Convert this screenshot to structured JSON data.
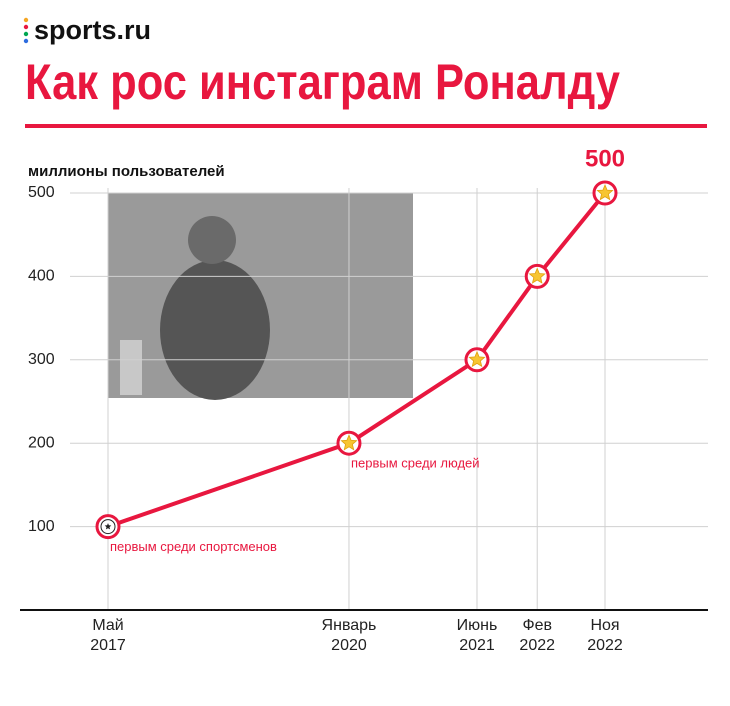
{
  "brand": "sports.ru",
  "chart_data": {
    "type": "line",
    "title": "Как рос инстаграм Роналду",
    "y_label": "миллионы пользователей",
    "x": [
      "2017-05",
      "2020-01",
      "2021-06",
      "2022-02",
      "2022-11"
    ],
    "values": [
      100,
      200,
      300,
      400,
      500
    ],
    "value_labels": [
      null,
      null,
      null,
      null,
      "500"
    ],
    "color": "#e8173f",
    "xticks": [
      {
        "value": "2017-05",
        "label": "Май 2017"
      },
      {
        "value": "2020-01",
        "label": "Январь 2020"
      },
      {
        "value": "2021-06",
        "label": "Июнь 2021"
      },
      {
        "value": "2022-02",
        "label": "Фев 2022"
      },
      {
        "value": "2022-11",
        "label": "Ноя 2022"
      }
    ],
    "ylim": [
      0,
      500
    ],
    "yticks": [
      100,
      200,
      300,
      400,
      500
    ],
    "grid": true,
    "annotations": [
      {
        "x": "2017-05",
        "text": "первым среди спортсменов"
      },
      {
        "x": "2020-01",
        "text": "первым среди людей"
      }
    ]
  }
}
